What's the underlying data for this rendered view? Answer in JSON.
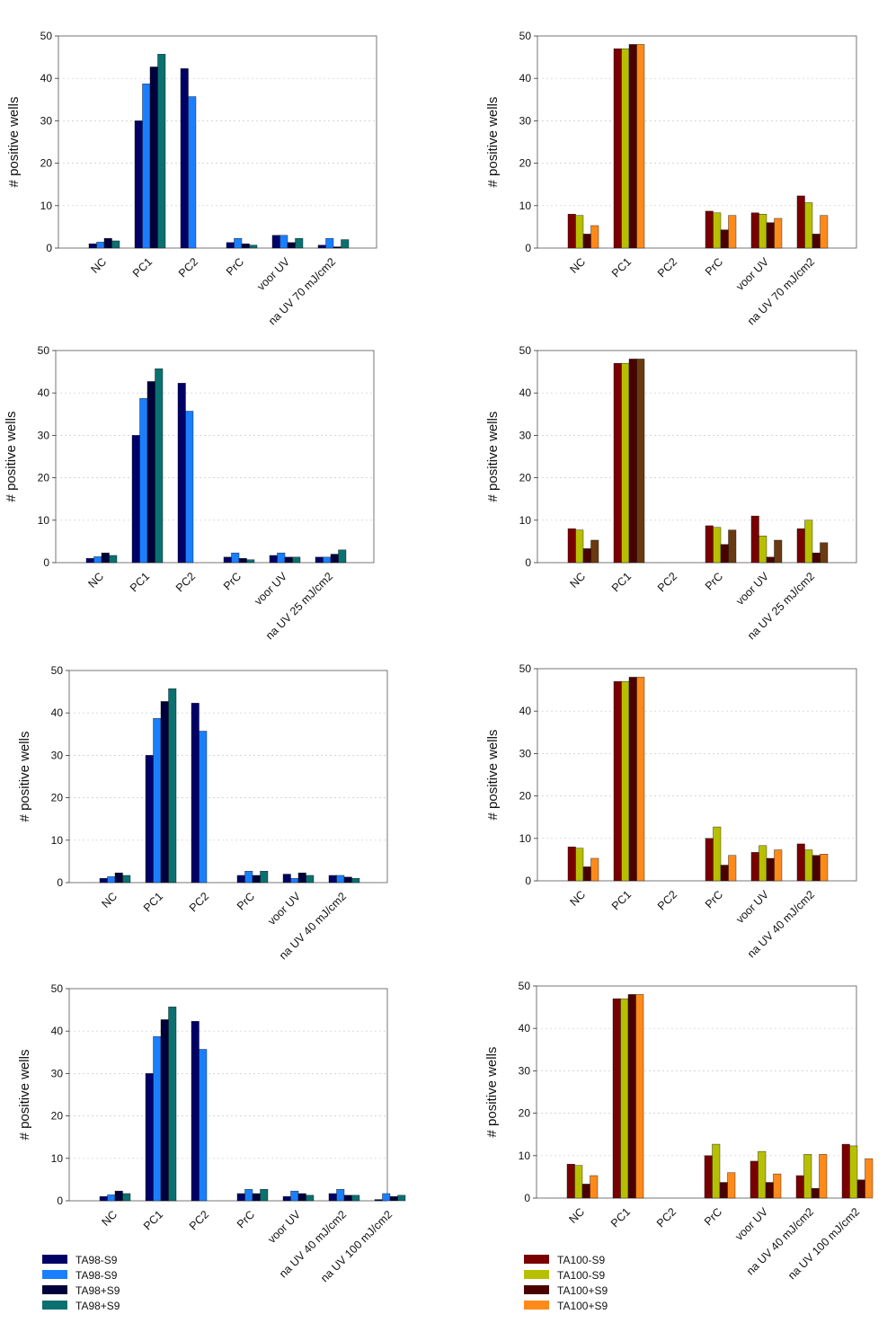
{
  "colors": {
    "ta98": [
      "#000066",
      "#1a7fff",
      "#00003a",
      "#0b7070"
    ],
    "ta100": [
      "#7a0000",
      "#b7c000",
      "#4a0000",
      "#ff8a1a"
    ],
    "ta100_alt4": "#6b3a10"
  },
  "legends": {
    "left": [
      "TA98-S9",
      "TA98-S9",
      "TA98+S9",
      "TA98+S9"
    ],
    "right": [
      "TA100-S9",
      "TA100-S9",
      "TA100+S9",
      "TA100+S9"
    ]
  },
  "chart_data": [
    {
      "type": "bar",
      "ylabel": "# positive wells",
      "ylim": [
        0,
        50
      ],
      "yticks": [
        0,
        10,
        20,
        30,
        40,
        50
      ],
      "categories": [
        "NC",
        "PC1",
        "PC2",
        "PrC",
        "voor UV",
        "na UV 70 mJ/cm2"
      ],
      "color_set": "ta98",
      "series": [
        {
          "values": [
            1,
            30,
            42.3,
            1.3,
            3,
            0.7
          ]
        },
        {
          "values": [
            1.4,
            38.7,
            35.7,
            2.3,
            3,
            2.3
          ]
        },
        {
          "values": [
            2.3,
            42.7,
            null,
            1,
            1.3,
            0.3
          ]
        },
        {
          "values": [
            1.7,
            45.7,
            null,
            0.7,
            2.3,
            2
          ]
        }
      ]
    },
    {
      "type": "bar",
      "ylabel": "# positive wells",
      "ylim": [
        0,
        50
      ],
      "yticks": [
        0,
        10,
        20,
        30,
        40,
        50
      ],
      "categories": [
        "NC",
        "PC1",
        "PC2",
        "PrC",
        "voor UV",
        "na UV 70 mJ/cm2"
      ],
      "color_set": "ta100",
      "series": [
        {
          "values": [
            8,
            47,
            null,
            8.7,
            8.3,
            12.3
          ]
        },
        {
          "values": [
            7.7,
            47,
            null,
            8.3,
            8,
            10.7
          ]
        },
        {
          "values": [
            3.3,
            48,
            null,
            4.3,
            6,
            3.3
          ]
        },
        {
          "values": [
            5.3,
            48,
            null,
            7.7,
            7,
            7.7
          ]
        }
      ]
    },
    {
      "type": "bar",
      "ylabel": "# positive wells",
      "ylim": [
        0,
        50
      ],
      "yticks": [
        0,
        10,
        20,
        30,
        40,
        50
      ],
      "categories": [
        "NC",
        "PC1",
        "PC2",
        "PrC",
        "voor UV",
        "na UV 25 mJ/cm2"
      ],
      "color_set": "ta98",
      "series": [
        {
          "values": [
            1,
            30,
            42.3,
            1.3,
            1.7,
            1.3
          ]
        },
        {
          "values": [
            1.4,
            38.7,
            35.7,
            2.3,
            2.3,
            1.3
          ]
        },
        {
          "values": [
            2.3,
            42.7,
            null,
            1,
            1.3,
            2
          ]
        },
        {
          "values": [
            1.7,
            45.7,
            null,
            0.7,
            1.3,
            3
          ]
        }
      ]
    },
    {
      "type": "bar",
      "ylabel": "# positive wells",
      "ylim": [
        0,
        50
      ],
      "yticks": [
        0,
        10,
        20,
        30,
        40,
        50
      ],
      "categories": [
        "NC",
        "PC1",
        "PC2",
        "PrC",
        "voor UV",
        "na UV 25 mJ/cm2"
      ],
      "color_set": "ta100_b",
      "series": [
        {
          "values": [
            8,
            47,
            null,
            8.7,
            11,
            8
          ]
        },
        {
          "values": [
            7.7,
            47,
            null,
            8.3,
            6.3,
            10
          ]
        },
        {
          "values": [
            3.3,
            48,
            null,
            4.3,
            1.3,
            2.3
          ]
        },
        {
          "values": [
            5.3,
            48,
            null,
            7.7,
            5.3,
            4.7
          ]
        }
      ]
    },
    {
      "type": "bar",
      "ylabel": "# positive wells",
      "ylim": [
        0,
        50
      ],
      "yticks": [
        0,
        10,
        20,
        30,
        40,
        50
      ],
      "categories": [
        "NC",
        "PC1",
        "PC2",
        "PrC",
        "voor UV",
        "na UV 40 mJ/cm2"
      ],
      "color_set": "ta98",
      "series": [
        {
          "values": [
            1,
            30,
            42.3,
            1.7,
            2,
            1.7
          ]
        },
        {
          "values": [
            1.4,
            38.7,
            35.7,
            2.7,
            1,
            1.7
          ]
        },
        {
          "values": [
            2.3,
            42.7,
            null,
            1.7,
            2.3,
            1.3
          ]
        },
        {
          "values": [
            1.7,
            45.7,
            null,
            2.7,
            1.7,
            1
          ]
        }
      ]
    },
    {
      "type": "bar",
      "ylabel": "# positive wells",
      "ylim": [
        0,
        50
      ],
      "yticks": [
        0,
        10,
        20,
        30,
        40,
        50
      ],
      "categories": [
        "NC",
        "PC1",
        "PC2",
        "PrC",
        "voor UV",
        "na UV 40 mJ/cm2"
      ],
      "color_set": "ta100",
      "series": [
        {
          "values": [
            8,
            47,
            null,
            10,
            6.7,
            8.7
          ]
        },
        {
          "values": [
            7.7,
            47,
            null,
            12.7,
            8.3,
            7.3
          ]
        },
        {
          "values": [
            3.3,
            48,
            null,
            3.7,
            5.3,
            6
          ]
        },
        {
          "values": [
            5.3,
            48,
            null,
            6,
            7.3,
            6.3
          ]
        }
      ]
    },
    {
      "type": "bar",
      "ylabel": "# positive wells",
      "ylim": [
        0,
        50
      ],
      "yticks": [
        0,
        10,
        20,
        30,
        40,
        50
      ],
      "categories": [
        "NC",
        "PC1",
        "PC2",
        "PrC",
        "voor UV",
        "na UV 40 mJ/cm2",
        "na UV 100 mJ/cm2"
      ],
      "color_set": "ta98",
      "series": [
        {
          "values": [
            1,
            30,
            42.3,
            1.7,
            1,
            1.7,
            0.3
          ]
        },
        {
          "values": [
            1.4,
            38.7,
            35.7,
            2.7,
            2.3,
            2.7,
            1.7
          ]
        },
        {
          "values": [
            2.3,
            42.7,
            null,
            1.7,
            1.7,
            1.3,
            1
          ]
        },
        {
          "values": [
            1.7,
            45.7,
            null,
            2.7,
            1.3,
            1.3,
            1.3
          ]
        }
      ]
    },
    {
      "type": "bar",
      "ylabel": "# positive wells",
      "ylim": [
        0,
        50
      ],
      "yticks": [
        0,
        10,
        20,
        30,
        40,
        50
      ],
      "categories": [
        "NC",
        "PC1",
        "PC2",
        "PrC",
        "voor UV",
        "na UV 40 mJ/cm2",
        "na UV 100 mJ/cm2"
      ],
      "color_set": "ta100",
      "series": [
        {
          "values": [
            8,
            47,
            null,
            10,
            8.7,
            5.3,
            12.7
          ]
        },
        {
          "values": [
            7.7,
            47,
            null,
            12.7,
            11,
            10.3,
            12.3
          ]
        },
        {
          "values": [
            3.3,
            48,
            null,
            3.7,
            3.7,
            2.3,
            4.3
          ]
        },
        {
          "values": [
            5.3,
            48,
            null,
            6,
            5.7,
            10.3,
            9.3
          ]
        }
      ]
    }
  ]
}
